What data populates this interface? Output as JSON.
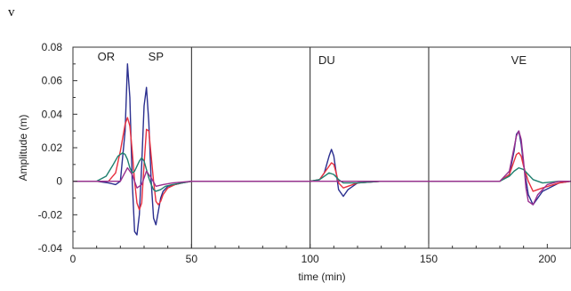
{
  "panel_letter": "v",
  "chart_data": {
    "type": "line",
    "title": "",
    "xlabel": "time (min)",
    "ylabel": "Amplitude (m)",
    "xlim": [
      0,
      210
    ],
    "ylim": [
      -0.04,
      0.08
    ],
    "x_ticks": [
      0,
      50,
      100,
      150,
      200
    ],
    "y_ticks": [
      -0.04,
      -0.02,
      0,
      0.02,
      0.04,
      0.06,
      0.08
    ],
    "y_tick_labels": [
      "-0.04",
      "-0.02",
      "0",
      "0.02",
      "0.04",
      "0.06",
      "0.08"
    ],
    "grid": "vertical lines at 50, 100, 150",
    "annotations": [
      {
        "text": "OR",
        "x": 14,
        "y": 0.072
      },
      {
        "text": "SP",
        "x": 35,
        "y": 0.072
      },
      {
        "text": "DU",
        "x": 107,
        "y": 0.07
      },
      {
        "text": "VE",
        "x": 188,
        "y": 0.07
      }
    ],
    "series": [
      {
        "color": "#2b2f8f",
        "x": [
          0,
          10,
          15,
          18,
          20,
          22,
          23,
          24,
          25,
          26,
          27,
          28,
          29,
          30,
          31,
          32,
          33,
          34,
          35,
          36,
          37,
          38,
          40,
          43,
          46,
          50,
          60,
          80,
          100,
          104,
          106,
          108,
          109,
          110,
          111,
          112,
          114,
          116,
          120,
          130,
          160,
          180,
          184,
          186,
          187,
          188,
          189,
          190,
          192,
          194,
          198,
          205,
          210
        ],
        "y": [
          0,
          0,
          -0.001,
          -0.002,
          0,
          0.03,
          0.07,
          0.05,
          0.0,
          -0.03,
          -0.032,
          -0.02,
          0.01,
          0.045,
          0.056,
          0.035,
          0.0,
          -0.022,
          -0.026,
          -0.018,
          -0.01,
          -0.006,
          -0.003,
          -0.002,
          -0.001,
          0,
          0,
          0,
          0,
          0.001,
          0.005,
          0.015,
          0.019,
          0.015,
          0.005,
          -0.005,
          -0.009,
          -0.005,
          -0.001,
          0,
          0,
          0,
          0.004,
          0.018,
          0.028,
          0.03,
          0.022,
          0.01,
          -0.008,
          -0.014,
          -0.006,
          -0.001,
          0
        ]
      },
      {
        "color": "#e8303f",
        "x": [
          0,
          10,
          15,
          18,
          20,
          22,
          23,
          24,
          25,
          26,
          27,
          28,
          29,
          30,
          31,
          32,
          33,
          34,
          35,
          36,
          37,
          38,
          40,
          43,
          46,
          50,
          60,
          80,
          100,
          104,
          106,
          108,
          109,
          110,
          111,
          112,
          114,
          116,
          120,
          130,
          160,
          180,
          184,
          186,
          187,
          188,
          189,
          190,
          192,
          194,
          198,
          205,
          210
        ],
        "y": [
          0,
          0,
          0,
          0.005,
          0.018,
          0.034,
          0.038,
          0.033,
          0.018,
          0.0,
          -0.013,
          -0.017,
          -0.013,
          0.01,
          0.031,
          0.03,
          0.015,
          0.0,
          -0.012,
          -0.014,
          -0.012,
          -0.008,
          -0.004,
          -0.002,
          -0.001,
          0,
          0,
          0,
          0,
          0.001,
          0.005,
          0.009,
          0.011,
          0.01,
          0.005,
          -0.001,
          -0.004,
          -0.003,
          -0.001,
          0,
          0,
          0,
          0.004,
          0.012,
          0.016,
          0.017,
          0.015,
          0.009,
          0.0,
          -0.006,
          -0.004,
          -0.001,
          0
        ]
      },
      {
        "color": "#1f7f6e",
        "x": [
          0,
          10,
          14,
          17,
          19,
          21,
          22,
          23,
          24,
          25,
          26,
          27,
          28,
          29,
          30,
          31,
          32,
          33,
          34,
          35,
          37,
          39,
          42,
          46,
          50,
          60,
          80,
          100,
          104,
          106,
          108,
          110,
          112,
          114,
          116,
          120,
          130,
          160,
          180,
          184,
          186,
          188,
          190,
          192,
          194,
          198,
          205,
          210
        ],
        "y": [
          0,
          0,
          0.003,
          0.01,
          0.015,
          0.017,
          0.016,
          0.013,
          0.008,
          0.005,
          0.006,
          0.009,
          0.012,
          0.014,
          0.012,
          0.007,
          0.002,
          -0.002,
          -0.005,
          -0.006,
          -0.005,
          -0.003,
          -0.002,
          -0.001,
          0,
          0,
          0,
          0,
          0.001,
          0.003,
          0.005,
          0.004,
          0.001,
          -0.001,
          -0.001,
          -0.001,
          0,
          0,
          0,
          0.003,
          0.006,
          0.008,
          0.007,
          0.004,
          0.001,
          -0.001,
          0,
          0
        ]
      },
      {
        "color": "#9a2f8f",
        "x": [
          0,
          20,
          23,
          25,
          27,
          29,
          31,
          33,
          35,
          38,
          42,
          50,
          100,
          180,
          184,
          186,
          187,
          188,
          189,
          190,
          191,
          192,
          194,
          196,
          200,
          205,
          210
        ],
        "y": [
          0,
          0,
          0.008,
          0.004,
          -0.004,
          -0.002,
          0.006,
          0.002,
          -0.003,
          -0.002,
          -0.001,
          0,
          0,
          0,
          0.006,
          0.02,
          0.027,
          0.03,
          0.025,
          0.012,
          -0.004,
          -0.012,
          -0.014,
          -0.008,
          -0.002,
          0,
          0
        ]
      }
    ]
  }
}
